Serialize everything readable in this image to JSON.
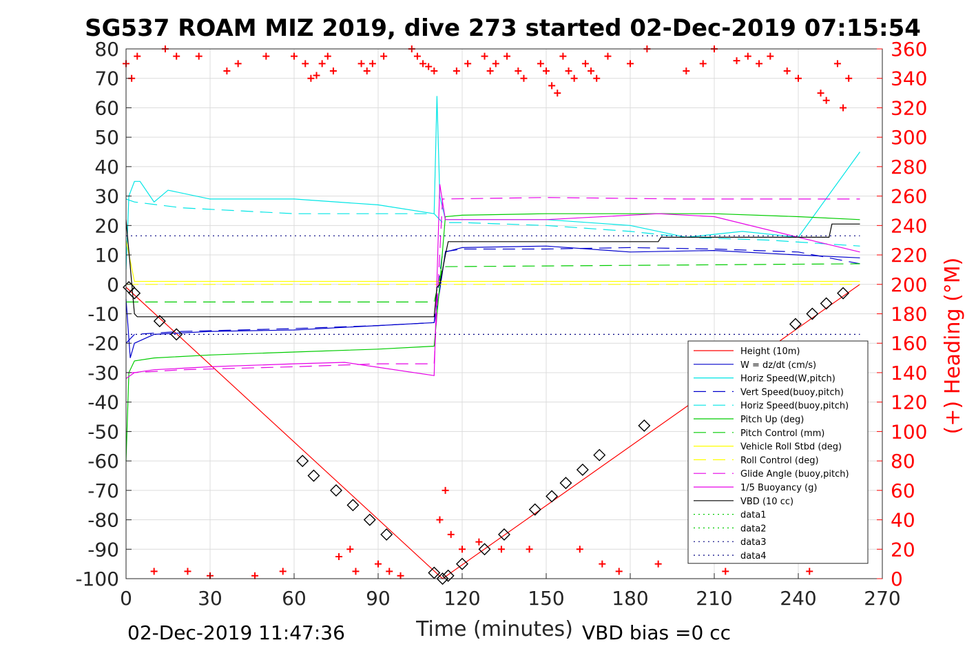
{
  "chart_data": {
    "type": "line",
    "title": "SG537 ROAM MIZ 2019, dive 273 started 02-Dec-2019 07:15:54",
    "xlabel": "Time (minutes)",
    "ylabel_right": "(+) Heading (°M)",
    "xlim": [
      0,
      270
    ],
    "ylim_left": [
      -100,
      80
    ],
    "ylim_right": [
      0,
      360
    ],
    "x_ticks": [
      "0",
      "30",
      "60",
      "90",
      "120",
      "150",
      "180",
      "210",
      "240",
      "270"
    ],
    "y_ticks_left": [
      "80",
      "70",
      "60",
      "50",
      "40",
      "30",
      "20",
      "10",
      "0",
      "-10",
      "-20",
      "-30",
      "-40",
      "-50",
      "-60",
      "-70",
      "-80",
      "-90",
      "-100"
    ],
    "y_ticks_right": [
      "360",
      "340",
      "320",
      "300",
      "280",
      "260",
      "240",
      "220",
      "200",
      "180",
      "160",
      "140",
      "120",
      "100",
      "80",
      "60",
      "40",
      "20",
      "0"
    ],
    "grid": true,
    "legend_position": "lower-right",
    "footer_left": "02-Dec-2019 11:47:36",
    "footer_right": "VBD bias =0 cc",
    "series": [
      {
        "name": "Height (10m)",
        "color": "#ff0000",
        "style": "solid",
        "x": [
          0,
          113,
          262
        ],
        "y": [
          -1,
          -100,
          0
        ]
      },
      {
        "name": "W = dz/dt (cm/s)",
        "color": "#0000cc",
        "style": "solid",
        "x": [
          0,
          1.5,
          3,
          10,
          30,
          60,
          90,
          110,
          112,
          114,
          120,
          150,
          180,
          210,
          240,
          262
        ],
        "y": [
          -5,
          -25,
          -20,
          -17,
          -16,
          -15.5,
          -14,
          -13,
          -2,
          11,
          12.5,
          13,
          11,
          11.5,
          10,
          9
        ]
      },
      {
        "name": "Horiz Speed(W,pitch)",
        "color": "#00e5e5",
        "style": "solid",
        "x": [
          0,
          1,
          3,
          5,
          10,
          15,
          30,
          60,
          90,
          110,
          111,
          112,
          114,
          130,
          150,
          180,
          200,
          220,
          240,
          262
        ],
        "y": [
          5,
          30,
          35,
          35,
          28,
          32,
          29,
          29,
          27,
          24,
          64,
          30,
          22,
          22,
          22,
          20,
          16,
          18,
          16,
          45
        ]
      },
      {
        "name": "Vert Speed(buoy,pitch)",
        "color": "#0000cc",
        "style": "dashed",
        "x": [
          0,
          3,
          20,
          60,
          90,
          110,
          113,
          120,
          150,
          180,
          210,
          240,
          262
        ],
        "y": [
          -20,
          -17,
          -16,
          -15,
          -14,
          -13,
          11,
          12,
          12,
          12.5,
          12,
          11,
          7
        ]
      },
      {
        "name": "Horiz Speed(buoy,pitch)",
        "color": "#00e5e5",
        "style": "dashed",
        "x": [
          0,
          3,
          20,
          60,
          90,
          110,
          113,
          120,
          150,
          180,
          200,
          230,
          262
        ],
        "y": [
          29,
          28,
          26,
          24,
          24,
          24,
          21,
          21,
          20,
          18,
          16,
          15,
          13
        ]
      },
      {
        "name": "Pitch Up (deg)",
        "color": "#00cc00",
        "style": "solid",
        "x": [
          0,
          1,
          3,
          10,
          30,
          60,
          90,
          110,
          112,
          114,
          120,
          150,
          180,
          210,
          240,
          262
        ],
        "y": [
          -60,
          -30,
          -26,
          -25,
          -24,
          -23,
          -22,
          -21,
          0,
          23,
          23.5,
          24,
          24,
          24,
          23,
          22
        ]
      },
      {
        "name": "Pitch Control (mm)",
        "color": "#00cc00",
        "style": "dashed",
        "x": [
          0,
          3,
          110,
          113,
          262
        ],
        "y": [
          -6,
          -6,
          -6,
          6,
          7
        ]
      },
      {
        "name": "Vehicle Roll Stbd (deg)",
        "color": "#ffff00",
        "style": "solid",
        "x": [
          0,
          3,
          60,
          110,
          113,
          200,
          262
        ],
        "y": [
          15,
          1,
          1,
          1,
          1,
          1,
          1
        ]
      },
      {
        "name": "Roll Control (deg)",
        "color": "#ffff00",
        "style": "dashed",
        "x": [
          0,
          262
        ],
        "y": [
          0,
          0
        ]
      },
      {
        "name": "Glide Angle (buoy,pitch)",
        "color": "#e600e6",
        "style": "dashed",
        "x": [
          0,
          3,
          20,
          60,
          90,
          110,
          113,
          150,
          200,
          262
        ],
        "y": [
          -30,
          -30,
          -29,
          -28,
          -27,
          -27,
          29,
          29.5,
          29,
          29
        ]
      },
      {
        "name": "1/5 Buoyancy (g)",
        "color": "#e600e6",
        "style": "solid",
        "x": [
          0,
          3,
          10,
          30,
          60,
          78,
          110,
          112,
          114,
          150,
          190,
          210,
          240,
          262
        ],
        "y": [
          -32,
          -30,
          -29,
          -28,
          -27,
          -26.5,
          -31,
          34,
          22,
          22,
          24,
          23,
          16,
          11
        ]
      },
      {
        "name": "VBD (10 cc)",
        "color": "#000000",
        "style": "solid",
        "x": [
          0,
          3,
          4,
          110,
          111,
          112,
          114,
          115,
          190,
          191,
          251,
          252,
          262
        ],
        "y": [
          22,
          -10,
          -11,
          -11,
          -1,
          0,
          10,
          14.5,
          14.5,
          16,
          16,
          20.5,
          20.5
        ]
      },
      {
        "name": "data1",
        "color": "#00cc00",
        "style": "dotted",
        "x": [],
        "y": []
      },
      {
        "name": "data2",
        "color": "#00cc00",
        "style": "dotted",
        "x": [],
        "y": []
      },
      {
        "name": "data3",
        "color": "#000080",
        "style": "dotted",
        "x": [
          0,
          262
        ],
        "y": [
          16.5,
          16.5
        ]
      },
      {
        "name": "data4",
        "color": "#000080",
        "style": "dotted",
        "x": [
          0,
          262
        ],
        "y": [
          -17,
          -17
        ]
      }
    ],
    "heading_markers": {
      "name": "Heading",
      "axis": "right",
      "color": "#ff0000",
      "marker": "+",
      "x": [
        0,
        2,
        4,
        10,
        14,
        18,
        22,
        26,
        30,
        36,
        40,
        46,
        50,
        56,
        60,
        64,
        66,
        68,
        70,
        72,
        74,
        76,
        80,
        82,
        84,
        86,
        88,
        90,
        92,
        94,
        98,
        102,
        104,
        106,
        108,
        110,
        112,
        114,
        116,
        118,
        120,
        122,
        126,
        128,
        130,
        132,
        134,
        136,
        140,
        142,
        144,
        148,
        150,
        152,
        154,
        156,
        158,
        160,
        162,
        164,
        166,
        168,
        170,
        172,
        176,
        180,
        186,
        190,
        200,
        206,
        210,
        214,
        218,
        222,
        226,
        230,
        236,
        240,
        244,
        248,
        250,
        254,
        256,
        258
      ],
      "y": [
        350,
        340,
        355,
        5,
        360,
        355,
        5,
        355,
        2,
        345,
        350,
        2,
        355,
        5,
        355,
        350,
        340,
        342,
        350,
        355,
        345,
        15,
        20,
        5,
        350,
        345,
        350,
        10,
        355,
        5,
        2,
        360,
        355,
        350,
        348,
        345,
        40,
        60,
        30,
        345,
        20,
        350,
        25,
        355,
        345,
        350,
        20,
        355,
        345,
        340,
        20,
        350,
        345,
        335,
        330,
        355,
        345,
        340,
        20,
        350,
        345,
        340,
        10,
        355,
        5,
        350,
        360,
        10,
        345,
        350,
        360,
        5,
        352,
        355,
        350,
        355,
        345,
        340,
        5,
        330,
        325,
        350,
        320,
        340
      ]
    },
    "position_markers": {
      "color": "#000000",
      "marker": "diamond",
      "x": [
        1,
        3,
        12,
        18,
        63,
        67,
        75,
        81,
        87,
        93,
        110,
        113,
        115,
        120,
        128,
        135,
        146,
        152,
        157,
        163,
        169,
        185,
        239,
        245,
        250,
        256
      ],
      "y": [
        -1,
        -3,
        -12.5,
        -17,
        -60,
        -65,
        -70,
        -75,
        -80,
        -85,
        -98,
        -100,
        -99,
        -95,
        -90,
        -85,
        -76.5,
        -72,
        -67.5,
        -63,
        -58,
        -48,
        -13.5,
        -10,
        -6.5,
        -3
      ]
    }
  }
}
